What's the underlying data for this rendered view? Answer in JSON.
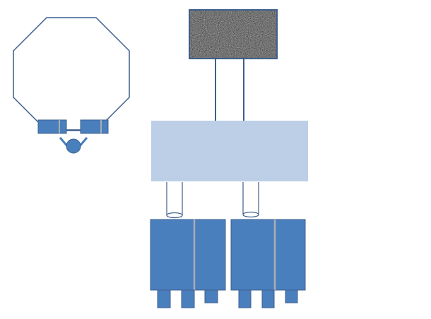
{
  "colors": {
    "outline": "#3d5f8c",
    "fill_blue": "#4a7fbe",
    "fill_light": "#bccfe6",
    "separator": "#a9adb3",
    "noise_dark": "#2a2a2a",
    "noise_light": "#8a8a8a",
    "background": "#ffffff"
  },
  "labels": {},
  "components": {
    "octagon": {
      "shape": "octagon",
      "pads": 2,
      "head": "circle"
    },
    "noise_box": {
      "texture": "noise"
    },
    "hub": {
      "shape": "rectangle"
    },
    "cylinders": 2,
    "modules": 2,
    "module_feet": 3
  }
}
